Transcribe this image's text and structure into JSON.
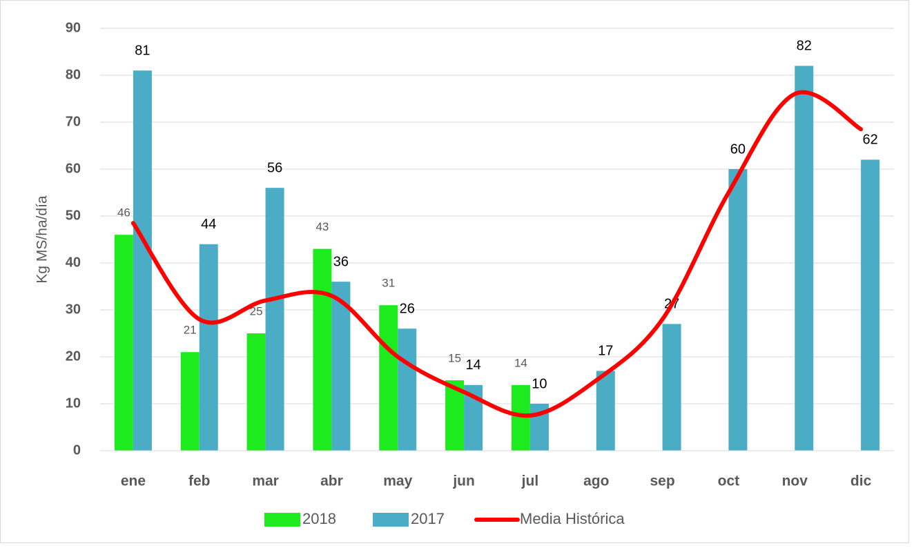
{
  "chart_data": {
    "type": "bar",
    "y_label": "Kg MS/ha/día",
    "categories": [
      "ene",
      "feb",
      "mar",
      "abr",
      "may",
      "jun",
      "jul",
      "ago",
      "sep",
      "oct",
      "nov",
      "dic"
    ],
    "series": [
      {
        "name": "2018",
        "type": "bar",
        "color": "#1eeb1e",
        "values": [
          46,
          21,
          25,
          43,
          31,
          15,
          14,
          null,
          null,
          null,
          null,
          null
        ]
      },
      {
        "name": "2017",
        "type": "bar",
        "color": "#4bacc6",
        "values": [
          81,
          44,
          56,
          36,
          26,
          14,
          10,
          17,
          27,
          60,
          82,
          62
        ]
      },
      {
        "name": "Media Histórica",
        "type": "line",
        "color": "#ff0000",
        "values": [
          48.5,
          28,
          32,
          33,
          20,
          12.5,
          7.5,
          15,
          28,
          55,
          76,
          68.5
        ]
      }
    ],
    "ylim": [
      0,
      90
    ],
    "yticks": [
      0,
      10,
      20,
      30,
      40,
      50,
      60,
      70,
      80,
      90
    ],
    "grid": true,
    "legend": "bottom"
  }
}
